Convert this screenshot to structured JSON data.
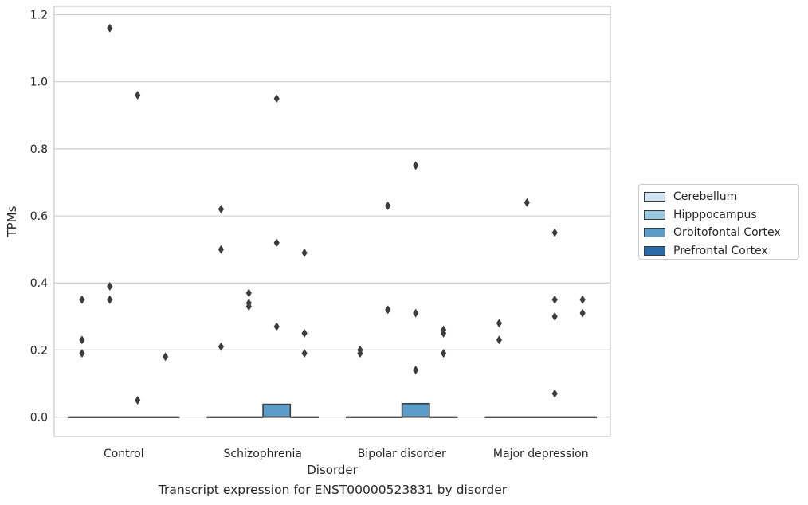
{
  "chart_data": {
    "type": "boxplot",
    "caption": "Transcript expression for ENST00000523831 by disorder",
    "xlabel": "Disorder",
    "ylabel": "TPMs",
    "ylim": [
      -0.058,
      1.225
    ],
    "yticks": [
      0.0,
      0.2,
      0.4,
      0.6,
      0.8,
      1.0,
      1.2
    ],
    "ytick_labels": [
      "0.0",
      "0.2",
      "0.4",
      "0.6",
      "0.8",
      "1.0",
      "1.2"
    ],
    "grid": "horizontal",
    "legend_position": "right",
    "categories": [
      "Control",
      "Schizophrenia",
      "Bipolar disorder",
      "Major depression"
    ],
    "series": [
      {
        "name": "Cerebellum",
        "color": "#d1e2f2",
        "boxes": [
          {
            "q1": 0,
            "median": 0,
            "q3": 0,
            "whisker_low": 0,
            "whisker_high": 0,
            "outliers": [
              0.35,
              0.23,
              0.19
            ]
          },
          {
            "q1": 0,
            "median": 0,
            "q3": 0,
            "whisker_low": 0,
            "whisker_high": 0,
            "outliers": [
              0.62,
              0.5,
              0.21
            ]
          },
          {
            "q1": 0,
            "median": 0,
            "q3": 0,
            "whisker_low": 0,
            "whisker_high": 0,
            "outliers": [
              0.2,
              0.19
            ]
          },
          {
            "q1": 0,
            "median": 0,
            "q3": 0,
            "whisker_low": 0,
            "whisker_high": 0,
            "outliers": [
              0.28,
              0.23
            ]
          }
        ]
      },
      {
        "name": "Hipppocampus",
        "color": "#9ac7e0",
        "boxes": [
          {
            "q1": 0,
            "median": 0,
            "q3": 0,
            "whisker_low": 0,
            "whisker_high": 0,
            "outliers": [
              1.16,
              0.39,
              0.35
            ]
          },
          {
            "q1": 0,
            "median": 0,
            "q3": 0,
            "whisker_low": 0,
            "whisker_high": 0,
            "outliers": [
              0.37,
              0.34,
              0.33
            ]
          },
          {
            "q1": 0,
            "median": 0,
            "q3": 0,
            "whisker_low": 0,
            "whisker_high": 0,
            "outliers": [
              0.63,
              0.32
            ]
          },
          {
            "q1": 0,
            "median": 0,
            "q3": 0,
            "whisker_low": 0,
            "whisker_high": 0,
            "outliers": [
              0.64
            ]
          }
        ]
      },
      {
        "name": "Orbitofontal Cortex",
        "color": "#5b9cc8",
        "boxes": [
          {
            "q1": 0,
            "median": 0,
            "q3": 0,
            "whisker_low": 0,
            "whisker_high": 0,
            "outliers": [
              0.96,
              0.05
            ]
          },
          {
            "q1": 0,
            "median": 0,
            "q3": 0.038,
            "whisker_low": 0,
            "whisker_high": 0.038,
            "outliers": [
              0.95,
              0.52,
              0.27
            ]
          },
          {
            "q1": 0,
            "median": 0,
            "q3": 0.04,
            "whisker_low": 0,
            "whisker_high": 0.04,
            "outliers": [
              0.75,
              0.31,
              0.14
            ]
          },
          {
            "q1": 0,
            "median": 0,
            "q3": 0,
            "whisker_low": 0,
            "whisker_high": 0,
            "outliers": [
              0.55,
              0.35,
              0.3,
              0.07
            ]
          }
        ]
      },
      {
        "name": "Prefrontal Cortex",
        "color": "#2b6aa9",
        "boxes": [
          {
            "q1": 0,
            "median": 0,
            "q3": 0,
            "whisker_low": 0,
            "whisker_high": 0,
            "outliers": [
              0.18
            ]
          },
          {
            "q1": 0,
            "median": 0,
            "q3": 0,
            "whisker_low": 0,
            "whisker_high": 0,
            "outliers": [
              0.49,
              0.25,
              0.19
            ]
          },
          {
            "q1": 0,
            "median": 0,
            "q3": 0,
            "whisker_low": 0,
            "whisker_high": 0,
            "outliers": [
              0.26,
              0.25,
              0.19
            ]
          },
          {
            "q1": 0,
            "median": 0,
            "q3": 0,
            "whisker_low": 0,
            "whisker_high": 0,
            "outliers": [
              0.35,
              0.31
            ]
          }
        ]
      }
    ]
  }
}
